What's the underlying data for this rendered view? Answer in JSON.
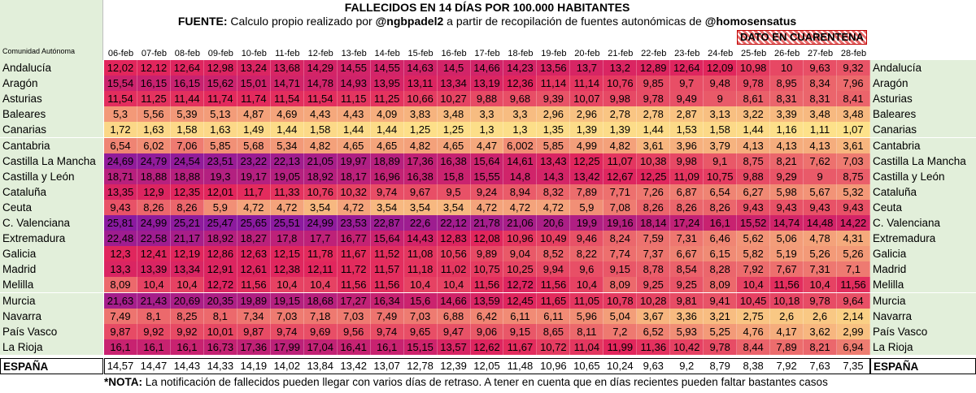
{
  "title": "FALLECIDOS EN 14 DÍAS POR 100.000 HABITANTES",
  "source": {
    "label": "FUENTE:",
    "text1": "Calculo propio realizado por",
    "author": "@ngbpadel2",
    "text2": "a partir de recopilación de fuentes autonómicas de",
    "provider": "@homosensatus"
  },
  "quarantine_label": "DATO EN CUARENTENA",
  "region_col_label": "Comunidad Autónoma",
  "note": {
    "prefix": "*NOTA:",
    "text": "La notificación de fallecidos pueden llegar con varios días de retraso. A tener en cuenta que en días recientes pueden faltar bastantes casos"
  },
  "colors": {
    "low": "#fde28a",
    "mid": "#e2265c",
    "high": "#8a1aa0",
    "label_bg": "#e2efda"
  },
  "chart_data": {
    "type": "heatmap",
    "dates": [
      "06-feb",
      "07-feb",
      "08-feb",
      "09-feb",
      "10-feb",
      "11-feb",
      "12-feb",
      "13-feb",
      "14-feb",
      "15-feb",
      "16-feb",
      "17-feb",
      "18-feb",
      "19-feb",
      "20-feb",
      "21-feb",
      "22-feb",
      "23-feb",
      "24-feb",
      "25-feb",
      "26-feb",
      "27-feb",
      "28-feb"
    ],
    "rows": [
      {
        "region": "Andalucía",
        "values": [
          "12,02",
          "12,12",
          "12,64",
          "12,98",
          "13,24",
          "13,68",
          "14,29",
          "14,55",
          "14,55",
          "14,63",
          "14,5",
          "14,66",
          "14,23",
          "13,56",
          "13,7",
          "13,2",
          "12,89",
          "12,64",
          "12,09",
          "10,98",
          "10",
          "9,63",
          "9,32"
        ]
      },
      {
        "region": "Aragón",
        "values": [
          "15,54",
          "16,15",
          "16,15",
          "15,62",
          "15,01",
          "14,71",
          "14,78",
          "14,93",
          "13,95",
          "13,11",
          "13,34",
          "13,19",
          "12,36",
          "11,14",
          "11,14",
          "10,76",
          "9,85",
          "9,7",
          "9,48",
          "9,78",
          "8,95",
          "8,34",
          "7,96"
        ]
      },
      {
        "region": "Asturias",
        "values": [
          "11,54",
          "11,25",
          "11,44",
          "11,74",
          "11,74",
          "11,54",
          "11,54",
          "11,15",
          "11,25",
          "10,66",
          "10,27",
          "9,88",
          "9,68",
          "9,39",
          "10,07",
          "9,98",
          "9,78",
          "9,49",
          "9",
          "8,61",
          "8,31",
          "8,31",
          "8,41"
        ]
      },
      {
        "region": "Baleares",
        "values": [
          "5,3",
          "5,56",
          "5,39",
          "5,13",
          "4,87",
          "4,69",
          "4,43",
          "4,43",
          "4,09",
          "3,83",
          "3,48",
          "3,3",
          "3,3",
          "2,96",
          "2,96",
          "2,78",
          "2,78",
          "2,87",
          "3,13",
          "3,22",
          "3,39",
          "3,48",
          "3,48"
        ]
      },
      {
        "region": "Canarias",
        "values": [
          "1,72",
          "1,63",
          "1,58",
          "1,63",
          "1,49",
          "1,44",
          "1,58",
          "1,44",
          "1,44",
          "1,25",
          "1,25",
          "1,3",
          "1,3",
          "1,35",
          "1,39",
          "1,39",
          "1,44",
          "1,53",
          "1,58",
          "1,44",
          "1,16",
          "1,11",
          "1,07"
        ]
      },
      {
        "region": "Cantabria",
        "values": [
          "6,54",
          "6,02",
          "7,06",
          "5,85",
          "5,68",
          "5,34",
          "4,82",
          "4,65",
          "4,65",
          "4,82",
          "4,65",
          "4,47",
          "6,002",
          "5,85",
          "4,99",
          "4,82",
          "3,61",
          "3,96",
          "3,79",
          "4,13",
          "4,13",
          "4,13",
          "3,61"
        ]
      },
      {
        "region": "Castilla La Mancha",
        "values": [
          "24,69",
          "24,79",
          "24,54",
          "23,51",
          "23,22",
          "22,13",
          "21,05",
          "19,97",
          "18,89",
          "17,36",
          "16,38",
          "15,64",
          "14,61",
          "13,43",
          "12,25",
          "11,07",
          "10,38",
          "9,98",
          "9,1",
          "8,75",
          "8,21",
          "7,62",
          "7,03"
        ]
      },
      {
        "region": "Castilla y León",
        "values": [
          "18,71",
          "18,88",
          "18,88",
          "19,3",
          "19,17",
          "19,05",
          "18,92",
          "18,17",
          "16,96",
          "16,38",
          "15,8",
          "15,55",
          "14,8",
          "14,3",
          "13,42",
          "12,67",
          "12,25",
          "11,09",
          "10,75",
          "9,88",
          "9,29",
          "9",
          "8,75"
        ]
      },
      {
        "region": "Cataluña",
        "values": [
          "13,35",
          "12,9",
          "12,35",
          "12,01",
          "11,7",
          "11,33",
          "10,76",
          "10,32",
          "9,74",
          "9,67",
          "9,5",
          "9,24",
          "8,94",
          "8,32",
          "7,89",
          "7,71",
          "7,26",
          "6,87",
          "6,54",
          "6,27",
          "5,98",
          "5,67",
          "5,32"
        ]
      },
      {
        "region": "Ceuta",
        "values": [
          "9,43",
          "8,26",
          "8,26",
          "5,9",
          "4,72",
          "4,72",
          "3,54",
          "4,72",
          "3,54",
          "3,54",
          "3,54",
          "4,72",
          "4,72",
          "4,72",
          "5,9",
          "7,08",
          "8,26",
          "8,26",
          "8,26",
          "9,43",
          "9,43",
          "9,43",
          "9,43"
        ]
      },
      {
        "region": "C. Valenciana",
        "values": [
          "25,81",
          "24,99",
          "25,21",
          "25,47",
          "25,65",
          "25,51",
          "24,99",
          "23,53",
          "22,87",
          "22,6",
          "22,12",
          "21,78",
          "21,06",
          "20,6",
          "19,9",
          "19,16",
          "18,14",
          "17,24",
          "16,1",
          "15,52",
          "14,74",
          "14,48",
          "14,22"
        ]
      },
      {
        "region": "Extremadura",
        "values": [
          "22,48",
          "22,58",
          "21,17",
          "18,92",
          "18,27",
          "17,8",
          "17,7",
          "16,77",
          "15,64",
          "14,43",
          "12,83",
          "12,08",
          "10,96",
          "10,49",
          "9,46",
          "8,24",
          "7,59",
          "7,31",
          "6,46",
          "5,62",
          "5,06",
          "4,78",
          "4,31"
        ]
      },
      {
        "region": "Galicia",
        "values": [
          "12,3",
          "12,41",
          "12,19",
          "12,86",
          "12,63",
          "12,15",
          "11,78",
          "11,67",
          "11,52",
          "11,08",
          "10,56",
          "9,89",
          "9,04",
          "8,52",
          "8,22",
          "7,74",
          "7,37",
          "6,67",
          "6,15",
          "5,82",
          "5,19",
          "5,26",
          "5,26"
        ]
      },
      {
        "region": "Madrid",
        "values": [
          "13,3",
          "13,39",
          "13,34",
          "12,91",
          "12,61",
          "12,38",
          "12,11",
          "11,72",
          "11,57",
          "11,18",
          "11,02",
          "10,75",
          "10,25",
          "9,94",
          "9,6",
          "9,15",
          "8,78",
          "8,54",
          "8,28",
          "7,92",
          "7,67",
          "7,31",
          "7,1"
        ]
      },
      {
        "region": "Melilla",
        "values": [
          "8,09",
          "10,4",
          "10,4",
          "12,72",
          "11,56",
          "10,4",
          "10,4",
          "11,56",
          "11,56",
          "10,4",
          "10,4",
          "11,56",
          "12,72",
          "11,56",
          "10,4",
          "8,09",
          "9,25",
          "9,25",
          "8,09",
          "10,4",
          "11,56",
          "10,4",
          "11,56"
        ]
      },
      {
        "region": "Murcia",
        "values": [
          "21,63",
          "21,43",
          "20,69",
          "20,35",
          "19,89",
          "19,15",
          "18,68",
          "17,27",
          "16,34",
          "15,6",
          "14,66",
          "13,59",
          "12,45",
          "11,65",
          "11,05",
          "10,78",
          "10,28",
          "9,81",
          "9,41",
          "10,45",
          "10,18",
          "9,78",
          "9,64"
        ]
      },
      {
        "region": "Navarra",
        "values": [
          "7,49",
          "8,1",
          "8,25",
          "8,1",
          "7,34",
          "7,03",
          "7,18",
          "7,03",
          "7,49",
          "7,03",
          "6,88",
          "6,42",
          "6,11",
          "6,11",
          "5,96",
          "5,04",
          "3,67",
          "3,36",
          "3,21",
          "2,75",
          "2,6",
          "2,6",
          "2,14"
        ]
      },
      {
        "region": "País Vasco",
        "values": [
          "9,87",
          "9,92",
          "9,92",
          "10,01",
          "9,87",
          "9,74",
          "9,69",
          "9,56",
          "9,74",
          "9,65",
          "9,47",
          "9,06",
          "9,15",
          "8,65",
          "8,11",
          "7,2",
          "6,52",
          "5,93",
          "5,25",
          "4,76",
          "4,17",
          "3,62",
          "2,99"
        ]
      },
      {
        "region": "La Rioja",
        "values": [
          "16,1",
          "16,1",
          "16,1",
          "16,73",
          "17,36",
          "17,99",
          "17,04",
          "16,41",
          "16,1",
          "15,15",
          "13,57",
          "12,62",
          "11,67",
          "10,72",
          "11,04",
          "11,99",
          "11,36",
          "10,42",
          "9,78",
          "8,44",
          "7,89",
          "8,21",
          "6,94"
        ]
      },
      {
        "region": "ESPAÑA",
        "total": true,
        "values": [
          "14,57",
          "14,47",
          "14,43",
          "14,33",
          "14,19",
          "14,02",
          "13,84",
          "13,42",
          "13,07",
          "12,78",
          "12,39",
          "12,05",
          "11,48",
          "10,96",
          "10,65",
          "10,24",
          "9,63",
          "9,2",
          "8,79",
          "8,38",
          "7,92",
          "7,63",
          "7,35"
        ]
      }
    ]
  }
}
